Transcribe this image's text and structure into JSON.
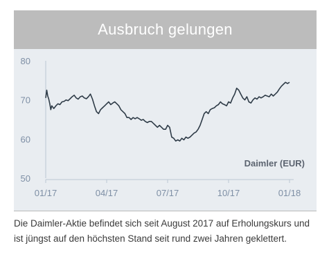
{
  "title": "Ausbruch gelungen",
  "caption": "Die Daimler-Aktie befindet sich seit August 2017 auf Erholungskurs und ist jüngst auf den höchsten Stand seit rund zwei Jahren geklettert.",
  "colors": {
    "line": "#2e3b47",
    "axis_text": "#7e8fa5",
    "label": "#5c6470",
    "banner": "#bcbcbc",
    "panel": "#e9edf1"
  },
  "chart_data": {
    "type": "line",
    "title": "Ausbruch gelungen",
    "series": [
      {
        "name": "Daimler (EUR)",
        "x": [
          0,
          0.05,
          0.1,
          0.15,
          0.2,
          0.25,
          0.3,
          0.4,
          0.5,
          0.6,
          0.7,
          0.8,
          0.9,
          1,
          1.1,
          1.2,
          1.3,
          1.4,
          1.5,
          1.6,
          1.7,
          1.8,
          1.9,
          2,
          2.1,
          2.2,
          2.3,
          2.4,
          2.5,
          2.6,
          2.7,
          2.8,
          2.9,
          3,
          3.1,
          3.2,
          3.3,
          3.4,
          3.5,
          3.6,
          3.7,
          3.8,
          3.9,
          4,
          4.1,
          4.2,
          4.3,
          4.4,
          4.5,
          4.6,
          4.7,
          4.8,
          4.9,
          5,
          5.1,
          5.2,
          5.3,
          5.4,
          5.5,
          5.6,
          5.7,
          5.8,
          5.9,
          6,
          6.1,
          6.2,
          6.3,
          6.4,
          6.5,
          6.6,
          6.7,
          6.8,
          6.9,
          7,
          7.1,
          7.2,
          7.3,
          7.4,
          7.5,
          7.6,
          7.7,
          7.8,
          7.9,
          8,
          8.1,
          8.2,
          8.3,
          8.4,
          8.5,
          8.6,
          8.7,
          8.8,
          8.9,
          9,
          9.1,
          9.2,
          9.3,
          9.4,
          9.5,
          9.6,
          9.7,
          9.8,
          9.9,
          10,
          10.1,
          10.2,
          10.3,
          10.4,
          10.5,
          10.6,
          10.7,
          10.8,
          10.9,
          11,
          11.1,
          11.2,
          11.3,
          11.4,
          11.5,
          11.6,
          11.7,
          11.8,
          11.9,
          12
        ],
        "values": [
          70.5,
          72.5,
          71,
          70.2,
          69,
          67.5,
          68.5,
          67.8,
          68.5,
          69,
          68.8,
          69.5,
          69.6,
          70,
          69.8,
          70.3,
          70.8,
          71.2,
          70.5,
          70.2,
          70.8,
          71,
          70.5,
          70.3,
          70.8,
          71.5,
          70.2,
          68.5,
          67,
          66.5,
          67.5,
          68,
          68.5,
          69,
          69.5,
          68.8,
          69.2,
          69.5,
          69,
          68.5,
          67.5,
          67,
          66.5,
          65.5,
          65.5,
          65,
          65.5,
          65.2,
          65.5,
          65.2,
          64.8,
          65,
          64.5,
          64.2,
          64.5,
          64.5,
          64,
          63.5,
          63,
          63.5,
          63,
          62.5,
          62.5,
          63.5,
          63,
          60.5,
          60.2,
          59.5,
          59.8,
          59.5,
          60.2,
          59.8,
          60.5,
          60.2,
          60.5,
          61,
          61.5,
          61.8,
          62.5,
          63.5,
          65,
          66.5,
          67,
          66.5,
          67.5,
          67.8,
          68,
          68.5,
          68.8,
          69.5,
          69,
          68.8,
          68.5,
          69.5,
          69.2,
          70.5,
          71.5,
          73,
          72.5,
          71.5,
          70.5,
          70,
          70.8,
          69.5,
          69.2,
          70,
          70.5,
          70.2,
          70.8,
          70.5,
          70.8,
          71.2,
          71,
          70.8,
          71.5,
          71,
          71.5,
          72,
          72.8,
          73.5,
          74,
          74.5,
          74.2,
          74.5
        ]
      }
    ],
    "x_ticks": [
      "01/17",
      "04/17",
      "07/17",
      "10/17",
      "01/18"
    ],
    "y_ticks": [
      "50",
      "60",
      "70",
      "80"
    ],
    "ylim": [
      50,
      80
    ],
    "xlim": [
      0,
      12
    ],
    "series_label": "Daimler (EUR)",
    "grid": false
  }
}
